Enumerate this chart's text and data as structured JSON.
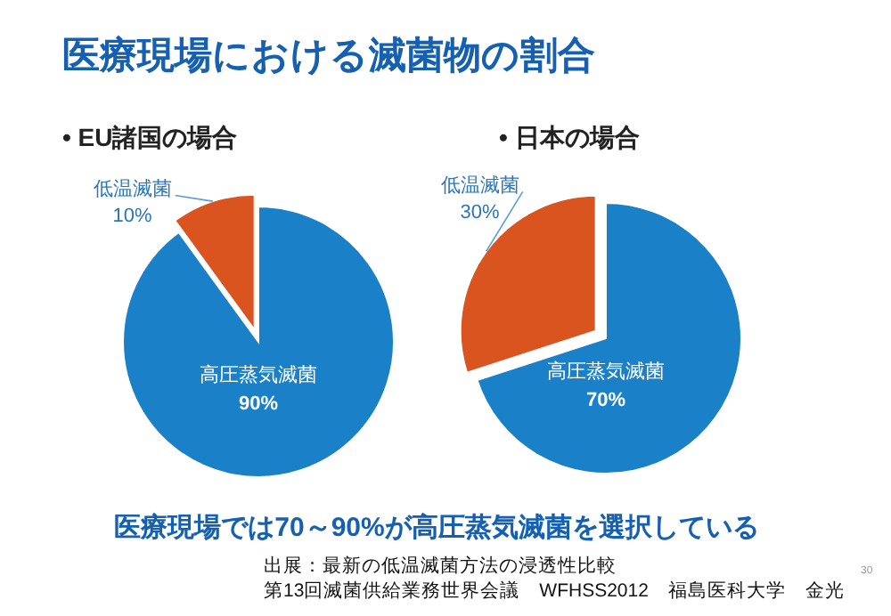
{
  "chart_data": [
    {
      "type": "pie",
      "title": "医療現場における滅菌物の割合",
      "subtitle": "• EU諸国の場合",
      "categories": [
        "低温滅菌",
        "高圧蒸気滅菌"
      ],
      "values": [
        10,
        90
      ],
      "value_labels": [
        "10%",
        "90%"
      ],
      "colors": [
        "#d9541e",
        "#1a80c8"
      ],
      "annotations": [
        "医療現場では70～90%が高圧蒸気滅菌を選択している",
        "出展：最新の低温滅菌方法の浸透性比較",
        "第13回滅菌供給業務世界会議　WFHSS2012　福島医科大学　金光",
        "30"
      ]
    },
    {
      "type": "pie",
      "subtitle": "• 日本の場合",
      "categories": [
        "低温滅菌",
        "高圧蒸気滅菌"
      ],
      "values": [
        30,
        70
      ],
      "value_labels": [
        "30%",
        "70%"
      ],
      "colors": [
        "#d9541e",
        "#1a80c8"
      ]
    }
  ]
}
